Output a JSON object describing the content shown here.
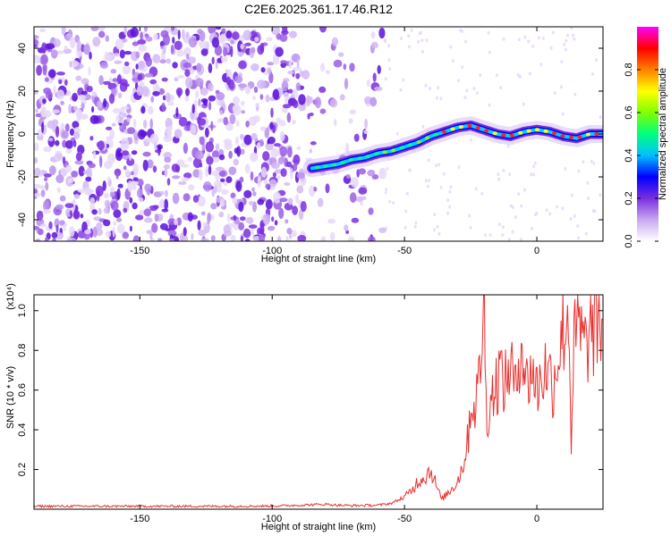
{
  "title": "C2E6.2025.361.17.46.R12",
  "chart_data": [
    {
      "type": "heatmap",
      "name": "spectrogram",
      "xlabel": "Height of straight line (km)",
      "ylabel": "Frequency (Hz)",
      "xlim": [
        -190,
        25
      ],
      "ylim": [
        -50,
        50
      ],
      "xticks": [
        -150,
        -100,
        -50,
        0
      ],
      "xtick_labels": [
        "-150",
        "-100",
        "-50",
        "0"
      ],
      "yticks": [
        -40,
        -20,
        0,
        20,
        40
      ],
      "ytick_labels": [
        "-40",
        "-20",
        "0",
        "20",
        "40"
      ],
      "colorbar": {
        "label": "Normalized spectral amplitude",
        "range": [
          0,
          1
        ],
        "ticks": [
          0.0,
          0.2,
          0.4,
          0.6,
          0.8
        ],
        "tick_labels": [
          "0.0",
          "0.2",
          "0.4",
          "0.6",
          "0.8"
        ],
        "colormap": [
          "#ffffff",
          "#c8a8f0",
          "#7a2ee0",
          "#0000ff",
          "#00c0ff",
          "#00ff80",
          "#80ff00",
          "#ffff00",
          "#ff8000",
          "#ff0000",
          "#ff00ff"
        ]
      },
      "noise_region": {
        "x_end": -88,
        "sparse_to": -58,
        "ylim": [
          -50,
          50
        ]
      },
      "ridge": {
        "x": [
          -85,
          -80,
          -75,
          -70,
          -65,
          -60,
          -55,
          -50,
          -45,
          -40,
          -35,
          -30,
          -25,
          -20,
          -15,
          -10,
          -5,
          0,
          5,
          10,
          15,
          20,
          25
        ],
        "y": [
          -16,
          -15,
          -14,
          -12,
          -11,
          -9,
          -8,
          -6,
          -4,
          -1,
          1,
          3,
          4,
          2,
          0,
          -1,
          1,
          2,
          1,
          -1,
          -2,
          0,
          0
        ]
      }
    },
    {
      "type": "line",
      "name": "snr",
      "xlabel": "Height of straight line (km)",
      "ylabel": "SNR (10 * v/v)",
      "yscale_label": "(x10⁴)",
      "xlim": [
        -190,
        25
      ],
      "ylim": [
        0,
        1.08
      ],
      "xticks": [
        -150,
        -100,
        -50,
        0
      ],
      "xtick_labels": [
        "-150",
        "-100",
        "-50",
        "0"
      ],
      "yticks": [
        0.2,
        0.4,
        0.6,
        0.8,
        1.0
      ],
      "ytick_labels": [
        "0.2",
        "0.4",
        "0.6",
        "0.8",
        "1.0"
      ],
      "color": "#e8302e",
      "series": [
        {
          "name": "SNR",
          "x": [
            -190,
            -150,
            -120,
            -100,
            -90,
            -80,
            -75,
            -70,
            -60,
            -55,
            -50,
            -47,
            -45,
            -42,
            -40,
            -38,
            -36,
            -33,
            -30,
            -28,
            -26,
            -25,
            -24,
            -22,
            -21,
            -20,
            -19,
            -18,
            -16,
            -14,
            -12,
            -10,
            -8,
            -6,
            -4,
            -2,
            0,
            2,
            4,
            6,
            8,
            10,
            12,
            13,
            14,
            16,
            18,
            20,
            22,
            25
          ],
          "y": [
            0.015,
            0.015,
            0.015,
            0.016,
            0.02,
            0.025,
            0.02,
            0.018,
            0.02,
            0.03,
            0.06,
            0.1,
            0.14,
            0.17,
            0.2,
            0.12,
            0.05,
            0.09,
            0.14,
            0.22,
            0.35,
            0.55,
            0.5,
            0.62,
            0.82,
            1.07,
            0.4,
            0.55,
            0.6,
            0.7,
            0.62,
            0.75,
            0.58,
            0.9,
            0.62,
            0.72,
            0.6,
            0.68,
            0.72,
            0.62,
            0.78,
            0.9,
            1.0,
            0.35,
            0.82,
            0.92,
            0.8,
            0.88,
            0.9,
            0.95
          ]
        }
      ]
    }
  ]
}
